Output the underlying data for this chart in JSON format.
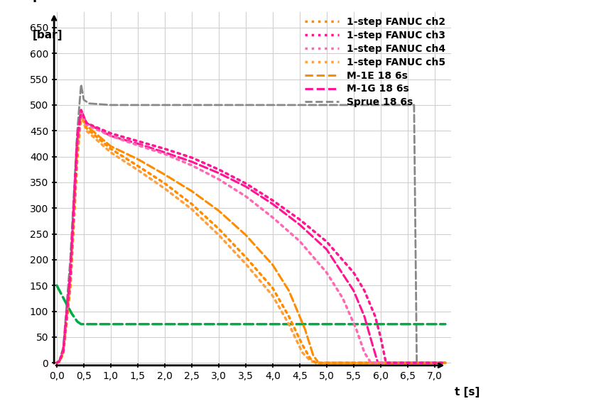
{
  "xlabel": "t [s]",
  "ylabel": "P\n[bar]",
  "xlim": [
    -0.05,
    7.3
  ],
  "ylim": [
    -5,
    680
  ],
  "xticks": [
    0.0,
    0.5,
    1.0,
    1.5,
    2.0,
    2.5,
    3.0,
    3.5,
    4.0,
    4.5,
    5.0,
    5.5,
    6.0,
    6.5,
    7.0
  ],
  "yticks": [
    0,
    50,
    100,
    150,
    200,
    250,
    300,
    350,
    400,
    450,
    500,
    550,
    600,
    650
  ],
  "xtick_labels": [
    "0,0",
    "0,5",
    "1,0",
    "1,5",
    "2,0",
    "2,5",
    "3,0",
    "3,5",
    "4,0",
    "4,5",
    "5,0",
    "5,5",
    "6,0",
    "6,5",
    "7,0"
  ],
  "background_color": "#ffffff",
  "grid_color": "#d0d0d0",
  "series": {
    "sprue": {
      "label": "Sprue 18 6s",
      "color": "#888888",
      "linestyle": "--",
      "linewidth": 2.0,
      "x": [
        0.0,
        0.05,
        0.12,
        0.25,
        0.38,
        0.45,
        0.5,
        0.6,
        1.0,
        2.0,
        3.0,
        4.0,
        5.0,
        6.0,
        6.5,
        6.62,
        6.67,
        6.75,
        7.2
      ],
      "y": [
        0,
        5,
        30,
        200,
        450,
        540,
        510,
        503,
        500,
        500,
        500,
        500,
        500,
        500,
        500,
        500,
        0,
        0,
        0
      ]
    },
    "green_flat": {
      "label": "",
      "color": "#00AA44",
      "linestyle": "--",
      "linewidth": 2.5,
      "x": [
        0.0,
        0.05,
        0.15,
        0.28,
        0.38,
        0.45,
        0.5,
        7.2
      ],
      "y": [
        150,
        140,
        120,
        95,
        80,
        75,
        75,
        75
      ]
    },
    "m1e": {
      "label": "M-1E 18 6s",
      "color": "#FF8C00",
      "linestyle": "--",
      "linewidth": 2.2,
      "x": [
        0.0,
        0.05,
        0.12,
        0.25,
        0.38,
        0.45,
        0.55,
        1.0,
        1.5,
        2.0,
        2.5,
        3.0,
        3.5,
        4.0,
        4.3,
        4.6,
        4.75,
        4.85,
        7.2
      ],
      "y": [
        0,
        3,
        20,
        160,
        420,
        490,
        460,
        420,
        395,
        365,
        333,
        295,
        248,
        190,
        140,
        65,
        15,
        0,
        0
      ]
    },
    "m1g": {
      "label": "M-1G 18 6s",
      "color": "#FF1493",
      "linestyle": "--",
      "linewidth": 2.2,
      "x": [
        0.0,
        0.05,
        0.12,
        0.25,
        0.38,
        0.45,
        0.55,
        1.0,
        1.5,
        2.0,
        2.5,
        3.0,
        3.5,
        4.0,
        4.5,
        5.0,
        5.5,
        5.7,
        5.85,
        5.95,
        7.2
      ],
      "y": [
        0,
        3,
        25,
        175,
        440,
        490,
        465,
        440,
        425,
        408,
        390,
        368,
        342,
        308,
        268,
        220,
        140,
        90,
        35,
        0,
        0
      ]
    },
    "ch2": {
      "label": "1-step FANUC ch2",
      "color": "#FF8C00",
      "linestyle": ":",
      "linewidth": 2.5,
      "x": [
        0.0,
        0.05,
        0.12,
        0.25,
        0.38,
        0.45,
        0.55,
        1.0,
        1.5,
        2.0,
        2.5,
        3.0,
        3.5,
        4.0,
        4.3,
        4.55,
        4.7,
        4.8,
        7.2
      ],
      "y": [
        0,
        3,
        18,
        145,
        400,
        485,
        455,
        415,
        382,
        348,
        308,
        260,
        205,
        145,
        90,
        35,
        8,
        0,
        0
      ]
    },
    "ch5": {
      "label": "1-step FANUC ch5",
      "color": "#FFA040",
      "linestyle": ":",
      "linewidth": 2.5,
      "x": [
        0.0,
        0.05,
        0.12,
        0.25,
        0.38,
        0.45,
        0.55,
        1.0,
        1.5,
        2.0,
        2.5,
        3.0,
        3.5,
        4.0,
        4.3,
        4.55,
        4.7,
        4.82,
        7.2
      ],
      "y": [
        0,
        3,
        18,
        145,
        395,
        480,
        450,
        408,
        374,
        338,
        298,
        248,
        192,
        130,
        75,
        20,
        4,
        0,
        0
      ]
    },
    "ch4": {
      "label": "1-step FANUC ch4",
      "color": "#FF69B4",
      "linestyle": ":",
      "linewidth": 2.5,
      "x": [
        0.0,
        0.05,
        0.12,
        0.25,
        0.38,
        0.45,
        0.55,
        1.0,
        1.5,
        2.0,
        2.5,
        3.0,
        3.5,
        4.0,
        4.5,
        5.0,
        5.3,
        5.55,
        5.7,
        5.82,
        7.2
      ],
      "y": [
        0,
        3,
        22,
        160,
        420,
        488,
        462,
        440,
        422,
        405,
        383,
        356,
        323,
        282,
        236,
        175,
        125,
        65,
        20,
        0,
        0
      ]
    },
    "ch3": {
      "label": "1-step FANUC ch3",
      "color": "#FF1493",
      "linestyle": ":",
      "linewidth": 2.5,
      "x": [
        0.0,
        0.05,
        0.12,
        0.25,
        0.38,
        0.45,
        0.55,
        1.0,
        1.5,
        2.0,
        2.5,
        3.0,
        3.5,
        4.0,
        4.5,
        5.0,
        5.5,
        5.7,
        5.9,
        6.0,
        6.1,
        7.2
      ],
      "y": [
        0,
        3,
        23,
        168,
        430,
        490,
        465,
        445,
        430,
        415,
        398,
        375,
        348,
        315,
        278,
        235,
        175,
        140,
        90,
        50,
        0,
        0
      ]
    }
  }
}
